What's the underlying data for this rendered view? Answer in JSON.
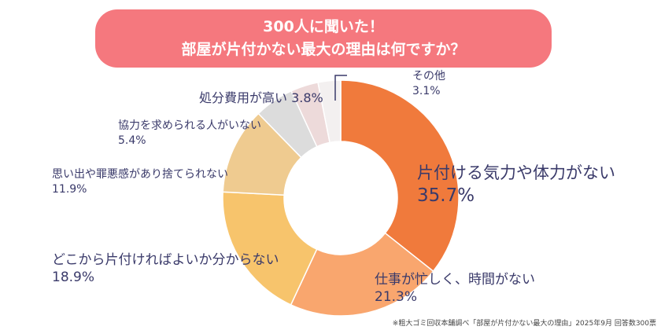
{
  "title": {
    "line1": "300人に聞いた！",
    "line2": "部屋が片付かない最大の理由は何ですか？"
  },
  "footnote": "※粗大ゴミ回収本舗調べ「部屋が片付かない最大の理由」2025年9月 回答数300票",
  "chart_data": {
    "type": "pie",
    "title": "300人に聞いた！部屋が片付かない最大の理由は何ですか？",
    "donut": true,
    "unit": "%",
    "categories": [
      "片付ける気力や体力がない",
      "仕事が忙しく、時間がない",
      "どこから片付ければよいか分からない",
      "思い出や罪悪感があり捨てられない",
      "協力を求められる人がいない",
      "処分費用が高い",
      "その他"
    ],
    "values": [
      35.7,
      21.3,
      18.9,
      11.9,
      5.4,
      3.8,
      3.1
    ],
    "value_labels": [
      "35.7%",
      "21.3%",
      "18.9%",
      "11.9%",
      "5.4%",
      "3.8%",
      "3.1%"
    ],
    "colors": [
      "#f07a3c",
      "#f9a66e",
      "#f7c46c",
      "#efcb90",
      "#dcdcdc",
      "#eddada",
      "#f3f0f0"
    ],
    "title_color": "#f5787e"
  }
}
